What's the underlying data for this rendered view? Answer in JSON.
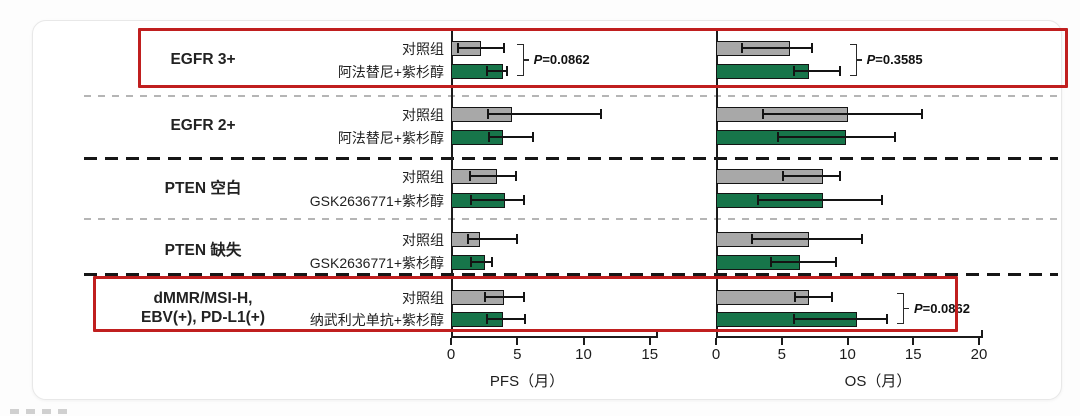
{
  "colors": {
    "control_bar": "#a8a8a8",
    "treatment_bar": "#17754a",
    "bar_border": "#141414",
    "highlight_box": "#c01f1f"
  },
  "series_labels": {
    "control": "对照组"
  },
  "chart_data": {
    "type": "bar",
    "orientation": "horizontal",
    "unit": "月",
    "panels": [
      {
        "id": "pfs",
        "title": "PFS（月）",
        "ticks": [
          0,
          5,
          10,
          15
        ],
        "xlim": [
          0,
          15.6
        ]
      },
      {
        "id": "os",
        "title": "OS（月）",
        "ticks": [
          0,
          5,
          10,
          15,
          20
        ],
        "xlim": [
          0,
          20.3
        ]
      }
    ],
    "legend": {
      "control": "对照组"
    },
    "groups": [
      {
        "label_lines": [
          "EGFR 3+"
        ],
        "treatment": "阿法替尼+紫杉醇",
        "highlighted": true,
        "separator_after": "gray-dashed",
        "pfs": {
          "control": {
            "value": 2.3,
            "lo": 0.5,
            "hi": 4.0
          },
          "treatment": {
            "value": 3.9,
            "lo": 2.7,
            "hi": 4.2
          },
          "p": "P=0.0862"
        },
        "os": {
          "control": {
            "value": 5.6,
            "lo": 2.0,
            "hi": 7.3
          },
          "treatment": {
            "value": 7.1,
            "lo": 5.9,
            "hi": 9.4
          },
          "p": "P=0.3585"
        }
      },
      {
        "label_lines": [
          "EGFR 2+"
        ],
        "treatment": "阿法替尼+紫杉醇",
        "highlighted": false,
        "separator_after": "black-dashed",
        "pfs": {
          "control": {
            "value": 4.6,
            "lo": 2.8,
            "hi": 11.3
          },
          "treatment": {
            "value": 3.9,
            "lo": 2.9,
            "hi": 6.2
          }
        },
        "os": {
          "control": {
            "value": 10.0,
            "lo": 3.6,
            "hi": 15.7
          },
          "treatment": {
            "value": 9.9,
            "lo": 4.7,
            "hi": 13.6
          }
        }
      },
      {
        "label_lines": [
          "PTEN 空白"
        ],
        "treatment": "GSK2636771+紫杉醇",
        "highlighted": false,
        "separator_after": "gray-dashed",
        "pfs": {
          "control": {
            "value": 3.5,
            "lo": 1.4,
            "hi": 4.9
          },
          "treatment": {
            "value": 4.1,
            "lo": 1.5,
            "hi": 5.5
          }
        },
        "os": {
          "control": {
            "value": 8.1,
            "lo": 5.1,
            "hi": 9.4
          },
          "treatment": {
            "value": 8.1,
            "lo": 3.2,
            "hi": 12.6
          }
        }
      },
      {
        "label_lines": [
          "PTEN 缺失"
        ],
        "treatment": "GSK2636771+紫杉醇",
        "highlighted": false,
        "separator_after": "black-dashed",
        "pfs": {
          "control": {
            "value": 2.2,
            "lo": 1.3,
            "hi": 5.0
          },
          "treatment": {
            "value": 2.6,
            "lo": 1.5,
            "hi": 3.1
          }
        },
        "os": {
          "control": {
            "value": 7.1,
            "lo": 2.7,
            "hi": 11.1
          },
          "treatment": {
            "value": 6.4,
            "lo": 4.2,
            "hi": 9.1
          }
        }
      },
      {
        "label_lines": [
          "dMMR/MSI-H,",
          "EBV(+), PD-L1(+)"
        ],
        "treatment": "纳武利尤单抗+紫杉醇",
        "highlighted": true,
        "separator_after": null,
        "pfs": {
          "control": {
            "value": 4.0,
            "lo": 2.6,
            "hi": 5.5
          },
          "treatment": {
            "value": 3.9,
            "lo": 2.7,
            "hi": 5.6
          }
        },
        "os": {
          "control": {
            "value": 7.1,
            "lo": 6.0,
            "hi": 8.8
          },
          "treatment": {
            "value": 10.7,
            "lo": 5.9,
            "hi": 13.0
          },
          "p": "P=0.0862"
        }
      }
    ]
  }
}
